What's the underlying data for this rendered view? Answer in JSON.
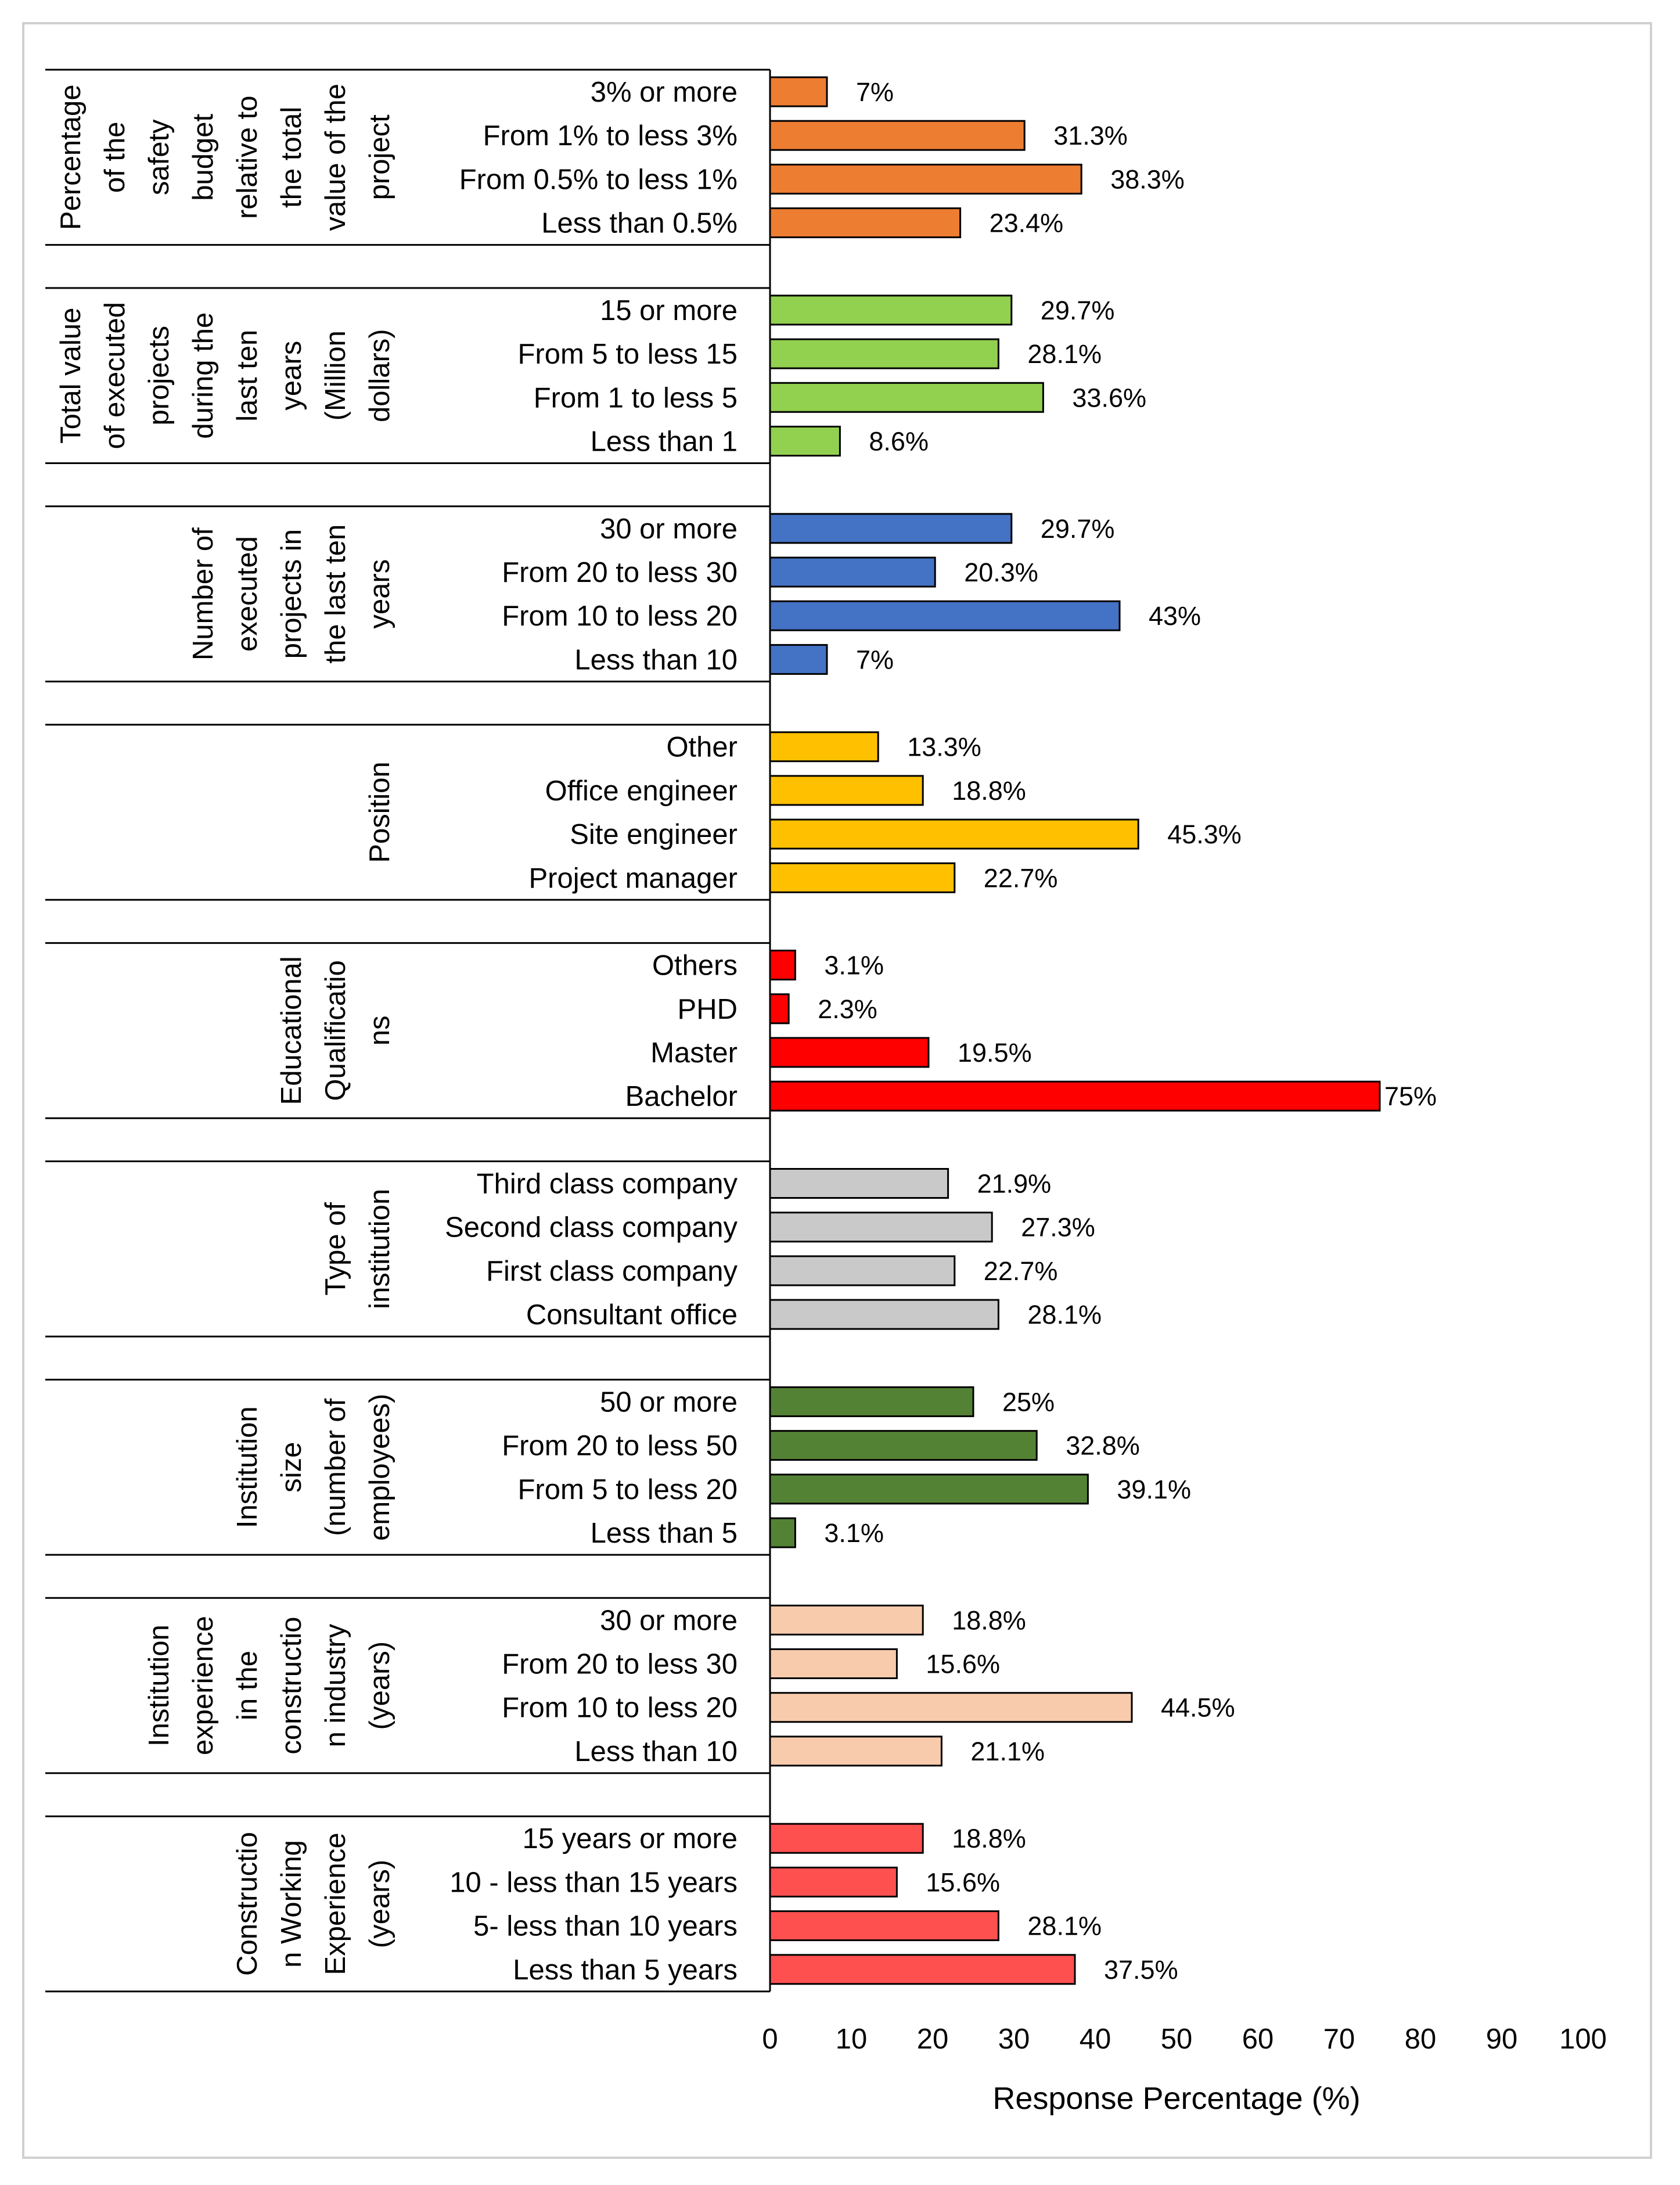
{
  "chart_data": {
    "type": "bar",
    "orientation": "horizontal",
    "title": "",
    "xlabel": "Response Percentage (%)",
    "ylabel": "",
    "xlim": [
      0,
      100
    ],
    "xticks": [
      "0",
      "10",
      "20",
      "30",
      "40",
      "50",
      "60",
      "70",
      "80",
      "90",
      "100"
    ],
    "grid": false,
    "groups": [
      {
        "name": "Percentage of the safety budget relative to the total value of the project",
        "label_lines": [
          "Percentage",
          "of the",
          "safety",
          "budget",
          "relative to",
          "the total",
          "value of the",
          "project"
        ],
        "color": "#ED7D31",
        "categories": [
          "3% or more",
          "From 1% to less 3%",
          "From 0.5% to less 1%",
          "Less than 0.5%"
        ],
        "values": [
          7,
          31.3,
          38.3,
          23.4
        ],
        "value_labels": [
          "7%",
          "31.3%",
          "38.3%",
          "23.4%"
        ]
      },
      {
        "name": "Total value of executed projects during the last ten years (Million dollars)",
        "label_lines": [
          "Total value",
          "of executed",
          "projects",
          "during the",
          "last ten",
          "years",
          "(Million",
          "dollars)"
        ],
        "color": "#92D050",
        "categories": [
          "15 or more",
          "From 5 to less 15",
          "From 1 to less 5",
          "Less than 1"
        ],
        "values": [
          29.7,
          28.1,
          33.6,
          8.6
        ],
        "value_labels": [
          "29.7%",
          "28.1%",
          "33.6%",
          "8.6%"
        ]
      },
      {
        "name": "Number of executed projects in the last ten years",
        "label_lines": [
          "Number of",
          "executed",
          "projects in",
          "the last ten",
          "years"
        ],
        "color": "#4472C4",
        "categories": [
          "30 or more",
          "From 20 to less 30",
          "From 10 to less 20",
          "Less than 10"
        ],
        "values": [
          29.7,
          20.3,
          43,
          7
        ],
        "value_labels": [
          "29.7%",
          "20.3%",
          "43%",
          "7%"
        ]
      },
      {
        "name": "Position",
        "label_lines": [
          "Position"
        ],
        "color": "#FFC000",
        "categories": [
          "Other",
          "Office engineer",
          "Site engineer",
          "Project manager"
        ],
        "values": [
          13.3,
          18.8,
          45.3,
          22.7
        ],
        "value_labels": [
          "13.3%",
          "18.8%",
          "45.3%",
          "22.7%"
        ]
      },
      {
        "name": "Educational Qualifications",
        "label_lines": [
          "Educational",
          "Qualificatio",
          "ns"
        ],
        "color": "#FF0000",
        "categories": [
          "Others",
          "PHD",
          "Master",
          "Bachelor"
        ],
        "values": [
          3.1,
          2.3,
          19.5,
          75
        ],
        "value_labels": [
          "3.1%",
          "2.3%",
          "19.5%",
          "75%"
        ]
      },
      {
        "name": "Type of institution",
        "label_lines": [
          "Type of",
          "institution"
        ],
        "color": "#C9C9C9",
        "categories": [
          "Third class company",
          "Second class company",
          "First class company",
          "Consultant office"
        ],
        "values": [
          21.9,
          27.3,
          22.7,
          28.1
        ],
        "value_labels": [
          "21.9%",
          "27.3%",
          "22.7%",
          "28.1%"
        ]
      },
      {
        "name": "Institution size (number of employees)",
        "label_lines": [
          "Institution",
          "size",
          "(number of",
          "employees)"
        ],
        "color": "#548235",
        "categories": [
          "50 or more",
          "From 20 to less 50",
          "From 5 to less 20",
          "Less than 5"
        ],
        "values": [
          25,
          32.8,
          39.1,
          3.1
        ],
        "value_labels": [
          "25%",
          "32.8%",
          "39.1%",
          "3.1%"
        ]
      },
      {
        "name": "Institution experience in the construction industry (years)",
        "label_lines": [
          "Institution",
          "experience",
          "in the",
          "constructio",
          "n industry",
          "(years)"
        ],
        "color": "#F8CBAD",
        "categories": [
          "30 or more",
          "From 20 to less 30",
          "From 10 to less 20",
          "Less than 10"
        ],
        "values": [
          18.8,
          15.6,
          44.5,
          21.1
        ],
        "value_labels": [
          "18.8%",
          "15.6%",
          "44.5%",
          "21.1%"
        ]
      },
      {
        "name": "Construction Working Experience (years)",
        "label_lines": [
          "Constructio",
          "n Working",
          "Experience",
          "(years)"
        ],
        "color": "#FF5050",
        "categories": [
          "15 years or more",
          "10 - less than 15 years",
          "5- less than 10 years",
          "Less than 5 years"
        ],
        "values": [
          18.8,
          15.6,
          28.1,
          37.5
        ],
        "value_labels": [
          "18.8%",
          "15.6%",
          "28.1%",
          "37.5%"
        ]
      }
    ]
  }
}
